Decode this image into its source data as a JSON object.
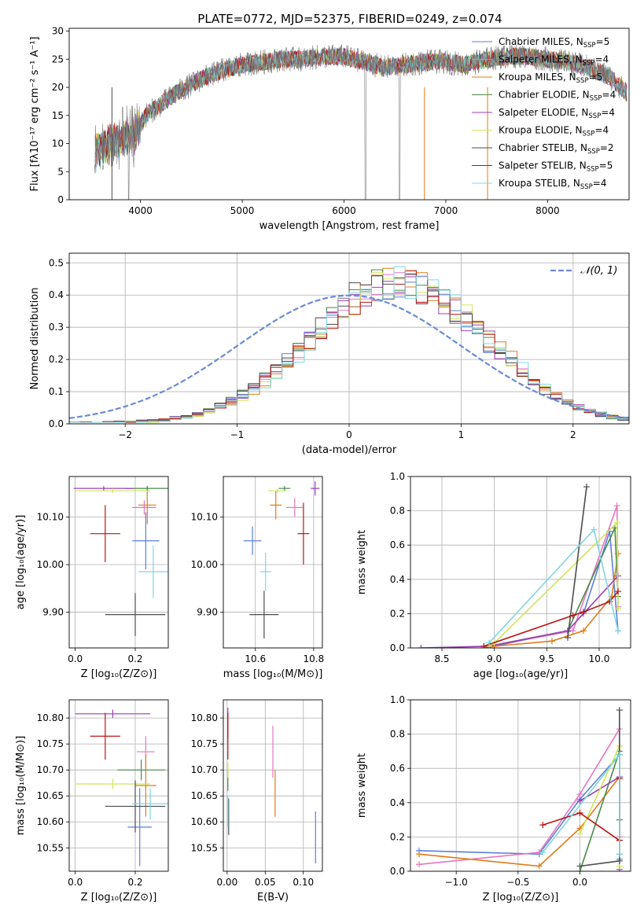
{
  "title": "PLATE=0772, MJD=52375, FIBERID=0249, z=0.074",
  "colors": {
    "chabrier_miles": "#5b7fd6",
    "salpeter_miles": "#e377c2",
    "kroupa_miles": "#e07b1a",
    "chabrier_elodie": "#4a8a4a",
    "salpeter_elodie": "#9b3fb5",
    "kroupa_elodie": "#cfe65a",
    "chabrier_stelib": "#4d4d4d",
    "salpeter_stelib": "#b81414",
    "kroupa_stelib": "#7fd6e0",
    "gauss": "#6a8bd6"
  },
  "chart_data": [
    {
      "id": "spectrum",
      "type": "line",
      "xlabel": "wavelength [Angstrom, rest frame]",
      "ylabel": "Flux [fλ10⁻¹⁷ erg cm⁻² s⁻¹ A⁻¹]",
      "xlim": [
        3300,
        8800
      ],
      "ylim": [
        0,
        30.5
      ],
      "xticks": [
        4000,
        5000,
        6000,
        7000,
        8000
      ],
      "yticks": [
        0,
        5,
        10,
        15,
        20,
        25,
        30
      ],
      "grid": false,
      "legend_position": "upper-right",
      "legend": [
        {
          "label": "Chabrier MILES, N",
          "sub": "SSP",
          "suffix": "=5",
          "color_key": "chabrier_miles"
        },
        {
          "label": "Salpeter MILES, N",
          "sub": "SSP",
          "suffix": "=4",
          "color_key": "salpeter_miles"
        },
        {
          "label": "Kroupa MILES, N",
          "sub": "SSP",
          "suffix": "=5",
          "color_key": "kroupa_miles"
        },
        {
          "label": "Chabrier ELODIE, N",
          "sub": "SSP",
          "suffix": "=4",
          "color_key": "chabrier_elodie"
        },
        {
          "label": "Salpeter ELODIE, N",
          "sub": "SSP",
          "suffix": "=4",
          "color_key": "salpeter_elodie"
        },
        {
          "label": "Kroupa ELODIE, N",
          "sub": "SSP",
          "suffix": "=4",
          "color_key": "kroupa_elodie"
        },
        {
          "label": "Chabrier STELIB, N",
          "sub": "SSP",
          "suffix": "=2",
          "color_key": "chabrier_stelib"
        },
        {
          "label": "Salpeter STELIB, N",
          "sub": "SSP",
          "suffix": "=5",
          "color_key": "salpeter_stelib"
        },
        {
          "label": "Kroupa STELIB, N",
          "sub": "SSP",
          "suffix": "=4",
          "color_key": "kroupa_stelib"
        }
      ],
      "continuum": {
        "x": [
          3550,
          3700,
          3850,
          3950,
          4050,
          4200,
          4400,
          4600,
          4800,
          5000,
          5200,
          5400,
          5600,
          5800,
          6000,
          6200,
          6400,
          6600,
          6800,
          7000,
          7200,
          7400,
          7600,
          7800,
          8000,
          8200,
          8400,
          8600,
          8780
        ],
        "y": [
          8,
          10,
          11,
          11.5,
          15,
          17,
          19.5,
          21.5,
          23,
          24,
          24.5,
          25,
          25,
          25.5,
          25.5,
          24.5,
          23.5,
          24,
          24.5,
          24.5,
          24,
          25,
          25.5,
          25.5,
          25,
          24.5,
          23.5,
          22,
          19
        ]
      }
    },
    {
      "id": "residuals",
      "type": "line",
      "xlabel": "(data-model)/error",
      "ylabel": "Normed distribution",
      "xlim": [
        -2.5,
        2.5
      ],
      "ylim": [
        0,
        0.53
      ],
      "xticks": [
        -2,
        -1,
        0,
        1,
        2
      ],
      "yticks": [
        0.0,
        0.1,
        0.2,
        0.3,
        0.4,
        0.5
      ],
      "grid": true,
      "legend_position": "upper-right",
      "legend": [
        {
          "label": "𝒩(0, 1)",
          "color_key": "gauss"
        }
      ],
      "histogram_bin_width": 0.1,
      "histogram_peak_x": 0.45,
      "histogram_sigma": 0.78,
      "histogram_peak": 0.44
    },
    {
      "id": "age_vs_Z",
      "type": "scatter",
      "xlabel": "Z [log₁₀(Z/Z⊙)]",
      "ylabel": "age  [log₁₀(age/yr)]",
      "xlim": [
        -0.02,
        0.31
      ],
      "ylim": [
        9.825,
        10.185
      ],
      "xticks": [
        0.0,
        0.2
      ],
      "yticks": [
        9.9,
        10.0,
        10.1
      ],
      "grid": true,
      "points": [
        {
          "color_key": "chabrier_miles",
          "x": 0.235,
          "y": 10.05,
          "xerr": 0.045,
          "yerr": 0.06
        },
        {
          "color_key": "salpeter_miles",
          "x": 0.23,
          "y": 10.12,
          "xerr": 0.04,
          "yerr": 0.015
        },
        {
          "color_key": "kroupa_miles",
          "x": 0.24,
          "y": 10.125,
          "xerr": 0.03,
          "yerr": 0.04
        },
        {
          "color_key": "chabrier_elodie",
          "x": 0.24,
          "y": 10.16,
          "xerr": 0.075,
          "yerr": 0.005
        },
        {
          "color_key": "salpeter_elodie",
          "x": 0.095,
          "y": 10.16,
          "xerr": 0.1,
          "yerr": 0.005
        },
        {
          "color_key": "kroupa_elodie",
          "x": 0.125,
          "y": 10.155,
          "xerr": 0.125,
          "yerr": 0.005
        },
        {
          "color_key": "chabrier_stelib",
          "x": 0.2,
          "y": 9.895,
          "xerr": 0.1,
          "yerr": 0.045
        },
        {
          "color_key": "salpeter_stelib",
          "x": 0.1,
          "y": 10.065,
          "xerr": 0.05,
          "yerr": 0.06
        },
        {
          "color_key": "kroupa_stelib",
          "x": 0.26,
          "y": 9.985,
          "xerr": 0.05,
          "yerr": 0.055
        }
      ]
    },
    {
      "id": "age_vs_mass",
      "type": "scatter",
      "xlabel": "mass [log₁₀(M/M⊙)]",
      "ylabel": "",
      "xlim": [
        10.49,
        10.83
      ],
      "ylim": [
        9.825,
        10.185
      ],
      "xticks": [
        10.6,
        10.8
      ],
      "yticks": [
        9.9,
        10.0,
        10.1
      ],
      "grid": true,
      "points": [
        {
          "color_key": "chabrier_miles",
          "x": 10.59,
          "y": 10.05,
          "xerr": 0.03,
          "yerr": 0.03
        },
        {
          "color_key": "salpeter_miles",
          "x": 10.735,
          "y": 10.12,
          "xerr": 0.03,
          "yerr": 0.02
        },
        {
          "color_key": "kroupa_miles",
          "x": 10.67,
          "y": 10.125,
          "xerr": 0.02,
          "yerr": 0.03
        },
        {
          "color_key": "chabrier_elodie",
          "x": 10.7,
          "y": 10.16,
          "xerr": 0.02,
          "yerr": 0.005
        },
        {
          "color_key": "salpeter_elodie",
          "x": 10.805,
          "y": 10.16,
          "xerr": 0.015,
          "yerr": 0.015
        },
        {
          "color_key": "kroupa_elodie",
          "x": 10.675,
          "y": 10.155,
          "xerr": 0.03,
          "yerr": 0.005
        },
        {
          "color_key": "chabrier_stelib",
          "x": 10.63,
          "y": 9.895,
          "xerr": 0.05,
          "yerr": 0.05
        },
        {
          "color_key": "salpeter_stelib",
          "x": 10.765,
          "y": 10.065,
          "xerr": 0.02,
          "yerr": 0.065
        },
        {
          "color_key": "kroupa_stelib",
          "x": 10.635,
          "y": 9.985,
          "xerr": 0.02,
          "yerr": 0.04
        }
      ]
    },
    {
      "id": "mass_weight_vs_age",
      "type": "line",
      "xlabel": "age  [log₁₀(age/yr)]",
      "ylabel": "mass weight",
      "xlim": [
        8.2,
        10.3
      ],
      "ylim": [
        0,
        1.0
      ],
      "xticks": [
        8.5,
        9.0,
        9.5,
        10.0
      ],
      "yticks": [
        0.0,
        0.2,
        0.4,
        0.6,
        0.8,
        1.0
      ],
      "grid": true,
      "series": [
        {
          "color_key": "chabrier_miles",
          "x": [
            9.0,
            9.7,
            9.85,
            10.1,
            10.18
          ],
          "y": [
            0.01,
            0.1,
            0.2,
            0.68,
            0.1
          ]
        },
        {
          "color_key": "salpeter_miles",
          "x": [
            8.95,
            9.75,
            10.17,
            10.18
          ],
          "y": [
            0.01,
            0.1,
            0.83,
            0.24
          ]
        },
        {
          "color_key": "kroupa_miles",
          "x": [
            8.9,
            9.0,
            9.55,
            9.85,
            10.12,
            10.18
          ],
          "y": [
            0.0,
            0.01,
            0.04,
            0.1,
            0.3,
            0.55
          ]
        },
        {
          "color_key": "chabrier_elodie",
          "x": [
            8.95,
            9.7,
            10.15,
            10.18
          ],
          "y": [
            0.01,
            0.1,
            0.7,
            0.3
          ]
        },
        {
          "color_key": "salpeter_elodie",
          "x": [
            8.3,
            8.95,
            9.7,
            10.18
          ],
          "y": [
            0.0,
            0.01,
            0.1,
            0.42
          ]
        },
        {
          "color_key": "kroupa_elodie",
          "x": [
            8.95,
            9.0,
            10.17,
            10.18
          ],
          "y": [
            0.01,
            0.03,
            0.73,
            0.23
          ]
        },
        {
          "color_key": "chabrier_stelib",
          "x": [
            9.7,
            9.88
          ],
          "y": [
            0.06,
            0.94
          ]
        },
        {
          "color_key": "salpeter_stelib",
          "x": [
            8.9,
            9.75,
            9.85,
            10.1,
            10.18
          ],
          "y": [
            0.01,
            0.19,
            0.21,
            0.27,
            0.33
          ]
        },
        {
          "color_key": "kroupa_stelib",
          "x": [
            8.95,
            9.95,
            10.18
          ],
          "y": [
            0.03,
            0.69,
            0.1
          ]
        }
      ]
    },
    {
      "id": "mass_vs_Z",
      "type": "scatter",
      "xlabel": "Z [log₁₀(Z/Z⊙)]",
      "ylabel": "mass [log₁₀(M/M⊙)]",
      "xlim": [
        -0.02,
        0.31
      ],
      "ylim": [
        10.505,
        10.835
      ],
      "xticks": [
        0.0,
        0.2
      ],
      "yticks": [
        10.55,
        10.6,
        10.65,
        10.7,
        10.75,
        10.8
      ],
      "grid": true,
      "points": [
        {
          "color_key": "chabrier_miles",
          "x": 0.215,
          "y": 10.59,
          "xerr": 0.04,
          "yerr": 0.075
        },
        {
          "color_key": "salpeter_miles",
          "x": 0.235,
          "y": 10.735,
          "xerr": 0.03,
          "yerr": 0.03
        },
        {
          "color_key": "kroupa_miles",
          "x": 0.235,
          "y": 10.67,
          "xerr": 0.035,
          "yerr": 0.06
        },
        {
          "color_key": "chabrier_elodie",
          "x": 0.22,
          "y": 10.7,
          "xerr": 0.08,
          "yerr": 0.02
        },
        {
          "color_key": "salpeter_elodie",
          "x": 0.125,
          "y": 10.808,
          "xerr": 0.125,
          "yerr": 0.008
        },
        {
          "color_key": "kroupa_elodie",
          "x": 0.125,
          "y": 10.673,
          "xerr": 0.125,
          "yerr": 0.01
        },
        {
          "color_key": "chabrier_stelib",
          "x": 0.2,
          "y": 10.63,
          "xerr": 0.1,
          "yerr": 0.05
        },
        {
          "color_key": "salpeter_stelib",
          "x": 0.1,
          "y": 10.765,
          "xerr": 0.05,
          "yerr": 0.045
        },
        {
          "color_key": "kroupa_stelib",
          "x": 0.25,
          "y": 10.635,
          "xerr": 0.06,
          "yerr": 0.03
        }
      ]
    },
    {
      "id": "mass_vs_ebv",
      "type": "scatter",
      "xlabel": "E(B-V)",
      "ylabel": "",
      "xlim": [
        -0.005,
        0.125
      ],
      "ylim": [
        10.505,
        10.835
      ],
      "xticks": [
        0.0,
        0.05,
        0.1
      ],
      "yticks": [
        10.55,
        10.6,
        10.65,
        10.7,
        10.75,
        10.8
      ],
      "grid": true,
      "points": [
        {
          "color_key": "chabrier_miles",
          "x": 0.116,
          "y": 10.57,
          "xerr": 0.0,
          "yerr": 0.05
        },
        {
          "color_key": "salpeter_miles",
          "x": 0.06,
          "y": 10.735,
          "xerr": 0.0,
          "yerr": 0.05
        },
        {
          "color_key": "kroupa_miles",
          "x": 0.063,
          "y": 10.655,
          "xerr": 0.0,
          "yerr": 0.045
        },
        {
          "color_key": "chabrier_elodie",
          "x": 0.001,
          "y": 10.68,
          "xerr": 0.0,
          "yerr": 0.02
        },
        {
          "color_key": "salpeter_elodie",
          "x": 0.001,
          "y": 10.79,
          "xerr": 0.0,
          "yerr": 0.03
        },
        {
          "color_key": "kroupa_elodie",
          "x": 0.001,
          "y": 10.7,
          "xerr": 0.0,
          "yerr": 0.015
        },
        {
          "color_key": "chabrier_stelib",
          "x": 0.002,
          "y": 10.61,
          "xerr": 0.0,
          "yerr": 0.035
        },
        {
          "color_key": "salpeter_stelib",
          "x": 0.001,
          "y": 10.765,
          "xerr": 0.0,
          "yerr": 0.045
        },
        {
          "color_key": "kroupa_stelib",
          "x": 0.001,
          "y": 10.62,
          "xerr": 0.0,
          "yerr": 0.03
        }
      ]
    },
    {
      "id": "mass_weight_vs_Z",
      "type": "line",
      "xlabel": "Z [log₁₀(Z/Z⊙)]",
      "ylabel": "mass weight",
      "xlim": [
        -1.37,
        0.41
      ],
      "ylim": [
        0,
        1.0
      ],
      "xticks": [
        -1.0,
        -0.5,
        0.0
      ],
      "yticks": [
        0.0,
        0.2,
        0.4,
        0.6,
        0.8,
        1.0
      ],
      "grid": true,
      "series": [
        {
          "color_key": "chabrier_miles",
          "x": [
            -1.3,
            -0.33,
            0.0,
            0.32,
            0.32,
            0.32
          ],
          "y": [
            0.12,
            0.1,
            0.42,
            0.68,
            0.1,
            0.07
          ]
        },
        {
          "color_key": "salpeter_miles",
          "x": [
            -1.3,
            -0.33,
            0.0,
            0.32,
            0.32
          ],
          "y": [
            0.04,
            0.11,
            0.45,
            0.83,
            0.2
          ]
        },
        {
          "color_key": "kroupa_miles",
          "x": [
            -1.3,
            -0.33,
            0.0,
            0.32,
            0.32
          ],
          "y": [
            0.1,
            0.03,
            0.25,
            0.55,
            0.18
          ]
        },
        {
          "color_key": "chabrier_elodie",
          "x": [
            0.0,
            0.32,
            0.32
          ],
          "y": [
            0.0,
            0.7,
            0.3
          ]
        },
        {
          "color_key": "salpeter_elodie",
          "x": [
            0.0,
            0.32,
            0.32
          ],
          "y": [
            0.41,
            0.55,
            0.01
          ]
        },
        {
          "color_key": "kroupa_elodie",
          "x": [
            0.0,
            0.32,
            0.32
          ],
          "y": [
            0.22,
            0.73,
            0.03
          ]
        },
        {
          "color_key": "chabrier_stelib",
          "x": [
            0.32,
            0.32,
            0.0
          ],
          "y": [
            0.94,
            0.06,
            0.03
          ]
        },
        {
          "color_key": "salpeter_stelib",
          "x": [
            -0.3,
            0.0,
            0.32,
            0.32
          ],
          "y": [
            0.27,
            0.34,
            0.18,
            0.54
          ]
        },
        {
          "color_key": "kroupa_stelib",
          "x": [
            -0.3,
            0.32,
            0.32
          ],
          "y": [
            0.11,
            0.68,
            0.1
          ]
        }
      ]
    }
  ]
}
